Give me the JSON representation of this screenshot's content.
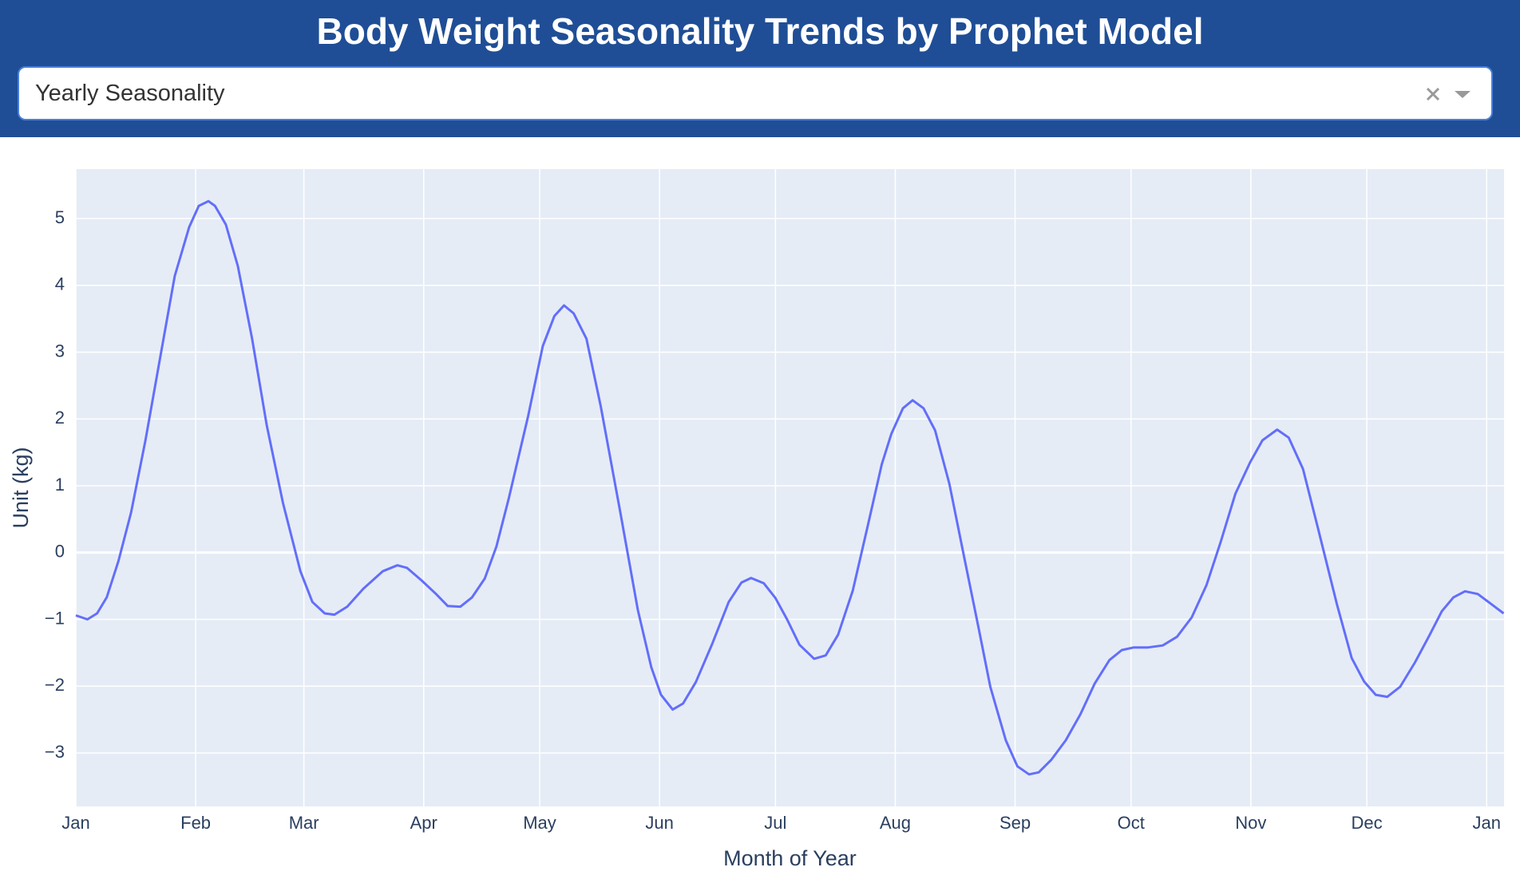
{
  "dropdown": {
    "selected": "Yearly Seasonality"
  },
  "chart_data": {
    "type": "line",
    "title": "Body Weight Seasonality Trends by Prophet Model",
    "x_label": "Month of Year",
    "y_label": "Unit (kg)",
    "x": [
      0,
      3,
      5.5,
      8,
      11,
      14.3,
      18,
      21.8,
      25.6,
      29.3,
      31.8,
      34.3,
      36,
      38.8,
      41.9,
      45.6,
      49.4,
      53.6,
      58.1,
      61.2,
      64.4,
      66.9,
      70.2,
      74.4,
      79.4,
      83.2,
      85.7,
      89.5,
      93.2,
      96.2,
      99.5,
      102.5,
      105.8,
      108.8,
      112,
      117,
      120.8,
      123.8,
      126.3,
      128.8,
      132.1,
      135.8,
      140.9,
      145.4,
      148.9,
      151.4,
      154.4,
      157.1,
      160.4,
      164.7,
      168.9,
      172.2,
      174.7,
      178,
      181,
      184,
      187.2,
      191,
      194,
      197.2,
      201,
      204.8,
      208.5,
      211,
      214,
      216.5,
      219.3,
      222.3,
      226,
      229.8,
      233.6,
      236.6,
      240.6,
      243.6,
      246.6,
      249.1,
      252.4,
      256.1,
      259.9,
      263.6,
      267.4,
      270.6,
      273.7,
      277.4,
      281.2,
      284.9,
      288.7,
      292.5,
      296.2,
      300,
      303.8,
      307,
      310.8,
      313.8,
      317.5,
      321.3,
      326.3,
      330.1,
      333.3,
      336.3,
      339.3,
      342.6,
      346.4,
      350.1,
      353.4,
      356.4,
      359.4,
      362.7,
      366.4,
      369.4
    ],
    "series": [
      {
        "name": "Yearly Seasonality",
        "color": "#636efa",
        "values": [
          -0.94,
          -1.0,
          -0.91,
          -0.67,
          -0.13,
          0.6,
          1.68,
          2.91,
          4.14,
          4.87,
          5.19,
          5.26,
          5.19,
          4.91,
          4.29,
          3.2,
          1.9,
          0.74,
          -0.28,
          -0.74,
          -0.91,
          -0.93,
          -0.81,
          -0.54,
          -0.28,
          -0.19,
          -0.23,
          -0.42,
          -0.62,
          -0.8,
          -0.81,
          -0.67,
          -0.39,
          0.09,
          0.81,
          2.04,
          3.09,
          3.54,
          3.7,
          3.58,
          3.2,
          2.19,
          0.59,
          -0.86,
          -1.72,
          -2.13,
          -2.35,
          -2.26,
          -1.94,
          -1.36,
          -0.74,
          -0.45,
          -0.38,
          -0.46,
          -0.68,
          -1.0,
          -1.38,
          -1.59,
          -1.54,
          -1.23,
          -0.57,
          0.38,
          1.32,
          1.78,
          2.16,
          2.28,
          2.16,
          1.83,
          1.03,
          -0.06,
          -1.14,
          -2.01,
          -2.81,
          -3.2,
          -3.32,
          -3.29,
          -3.1,
          -2.81,
          -2.42,
          -1.96,
          -1.61,
          -1.46,
          -1.42,
          -1.42,
          -1.39,
          -1.26,
          -0.97,
          -0.49,
          0.16,
          0.88,
          1.35,
          1.68,
          1.84,
          1.72,
          1.25,
          0.38,
          -0.78,
          -1.58,
          -1.93,
          -2.13,
          -2.16,
          -2.01,
          -1.65,
          -1.25,
          -0.88,
          -0.67,
          -0.58,
          -0.62,
          -0.78,
          -0.91
        ]
      }
    ],
    "xlim": [
      0,
      369.5
    ],
    "xticks": [
      {
        "value": 0,
        "label": "Jan"
      },
      {
        "value": 31,
        "label": "Feb"
      },
      {
        "value": 59,
        "label": "Mar"
      },
      {
        "value": 90,
        "label": "Apr"
      },
      {
        "value": 120,
        "label": "May"
      },
      {
        "value": 151,
        "label": "Jun"
      },
      {
        "value": 181,
        "label": "Jul"
      },
      {
        "value": 212,
        "label": "Aug"
      },
      {
        "value": 243,
        "label": "Sep"
      },
      {
        "value": 273,
        "label": "Oct"
      },
      {
        "value": 304,
        "label": "Nov"
      },
      {
        "value": 334,
        "label": "Dec"
      },
      {
        "value": 365,
        "label": "Jan"
      }
    ],
    "ylim": [
      -3.8,
      5.74
    ],
    "yticks": [
      {
        "value": -3,
        "label": "−3"
      },
      {
        "value": -2,
        "label": "−2"
      },
      {
        "value": -1,
        "label": "−1"
      },
      0,
      1,
      2,
      3,
      4,
      5
    ],
    "grid": true
  }
}
